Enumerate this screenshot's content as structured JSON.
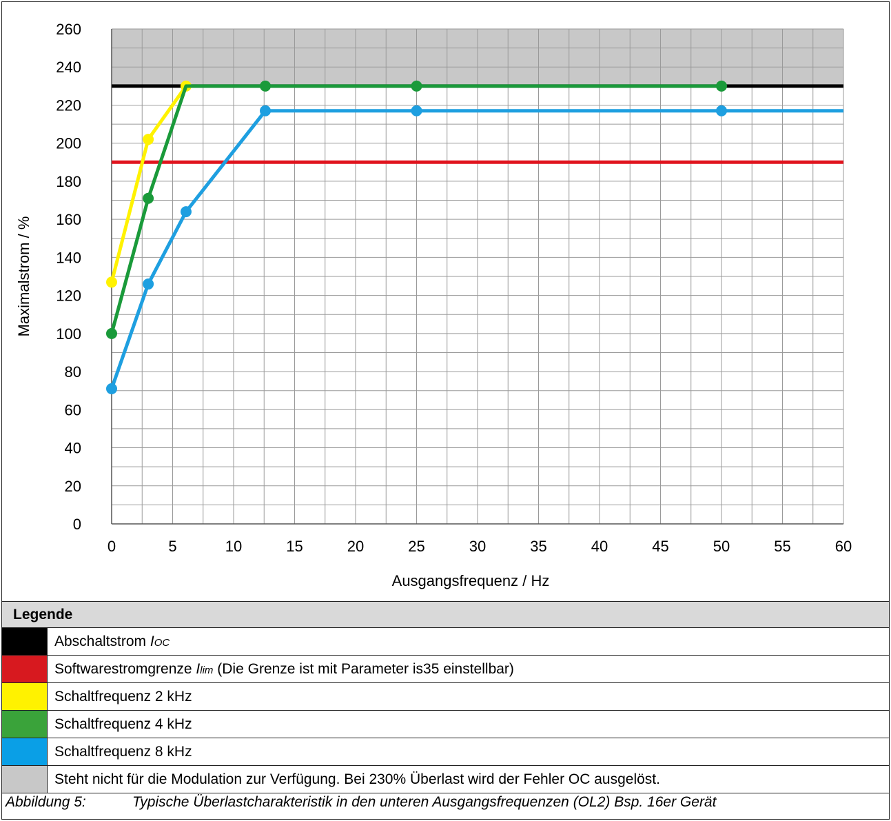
{
  "chart_data": {
    "type": "line",
    "xlabel": "Ausgangsfrequenz / Hz",
    "ylabel": "Maximalstrom / %",
    "xlim": [
      0,
      60
    ],
    "ylim": [
      0,
      260
    ],
    "x_ticks": [
      "0",
      "5",
      "10",
      "15",
      "20",
      "25",
      "30",
      "35",
      "40",
      "45",
      "50",
      "55",
      "60"
    ],
    "y_ticks": [
      "0",
      "20",
      "40",
      "60",
      "80",
      "100",
      "120",
      "140",
      "160",
      "180",
      "200",
      "220",
      "240",
      "260"
    ],
    "grid": true,
    "shaded_region": {
      "y_from": 230,
      "y_to": 260,
      "color": "#c8c8c8"
    },
    "series": [
      {
        "name": "Abschaltstrom",
        "color": "#000000",
        "points": [
          [
            0,
            230
          ],
          [
            60,
            230
          ]
        ],
        "markers": false
      },
      {
        "name": "Softwarestromgrenze",
        "color": "#e0141e",
        "points": [
          [
            0,
            190
          ],
          [
            60,
            190
          ]
        ],
        "markers": false
      },
      {
        "name": "Schaltfrequenz 2 kHz",
        "color": "#fff200",
        "points": [
          [
            0,
            127
          ],
          [
            3,
            202
          ],
          [
            6.1,
            230
          ]
        ],
        "markers": true
      },
      {
        "name": "Schaltfrequenz 4 kHz",
        "color": "#1a9a3a",
        "points": [
          [
            0,
            100
          ],
          [
            3,
            171
          ],
          [
            6.1,
            230
          ],
          [
            12.6,
            230
          ],
          [
            25,
            230
          ],
          [
            50,
            230
          ]
        ],
        "markers": true,
        "marker_points": [
          [
            0,
            100
          ],
          [
            3,
            171
          ],
          [
            12.6,
            230
          ],
          [
            25,
            230
          ],
          [
            50,
            230
          ]
        ]
      },
      {
        "name": "Schaltfrequenz 8 kHz",
        "color": "#1e9fe0",
        "points": [
          [
            0,
            71
          ],
          [
            3,
            126
          ],
          [
            6.1,
            164
          ],
          [
            12.6,
            217
          ],
          [
            25,
            217
          ],
          [
            50,
            217
          ],
          [
            60,
            217
          ]
        ],
        "markers": true,
        "marker_points": [
          [
            0,
            71
          ],
          [
            3,
            126
          ],
          [
            6.1,
            164
          ],
          [
            12.6,
            217
          ],
          [
            25,
            217
          ],
          [
            50,
            217
          ]
        ]
      }
    ]
  },
  "legend": {
    "title": "Legende",
    "rows": [
      {
        "color": "#000000",
        "text": "Abschaltstrom ",
        "symbol": "I",
        "sub": "OC",
        "suffix": ""
      },
      {
        "color": "#d7191f",
        "text": "Softwarestromgrenze ",
        "symbol": "I",
        "sub": "lim",
        "suffix": " (Die Grenze ist mit Parameter is35 einstellbar)"
      },
      {
        "color": "#fff200",
        "text": "Schaltfrequenz 2 kHz",
        "symbol": "",
        "sub": "",
        "suffix": ""
      },
      {
        "color": "#3aa33a",
        "text": "Schaltfrequenz 4 kHz",
        "symbol": "",
        "sub": "",
        "suffix": ""
      },
      {
        "color": "#0a9fe6",
        "text": "Schaltfrequenz 8 kHz",
        "symbol": "",
        "sub": "",
        "suffix": ""
      },
      {
        "color": "#c8c8c8",
        "text": "Steht nicht für die Modulation zur Verfügung. Bei 230% Überlast wird der Fehler OC ausgelöst.",
        "symbol": "",
        "sub": "",
        "suffix": ""
      }
    ]
  },
  "caption": {
    "number": "Abbildung 5:",
    "text": "Typische Überlastcharakteristik in den unteren Ausgangsfrequenzen (OL2) Bsp. 16er Gerät"
  }
}
